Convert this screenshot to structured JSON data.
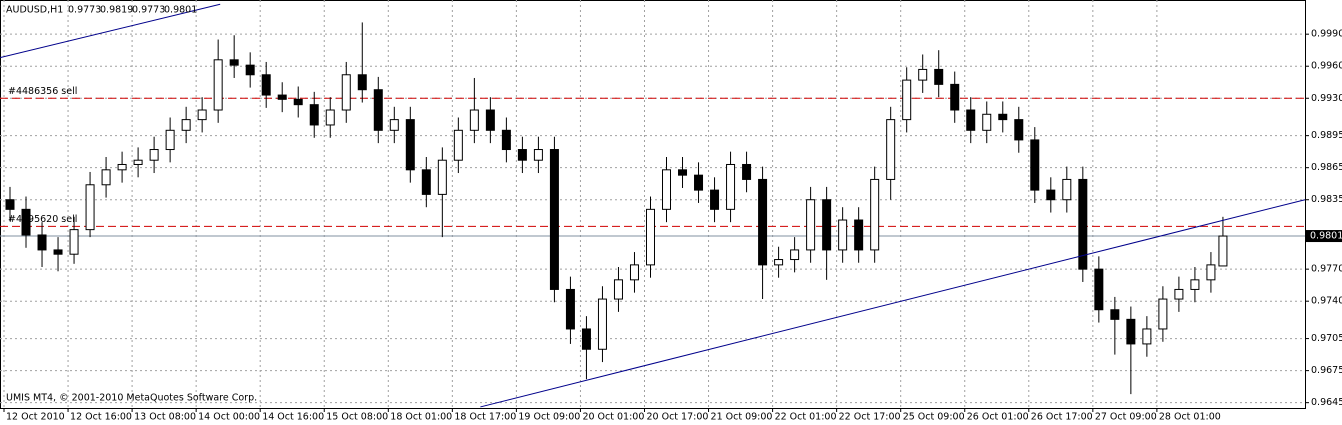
{
  "chart_data": {
    "type": "candlestick",
    "title": "AUDUSD,H1",
    "footer": "UMIS MT4, © 2001-2010 MetaQuotes Software Corp.",
    "x": [
      0,
      4,
      8,
      12,
      16,
      20,
      24,
      28,
      32,
      36,
      40,
      44,
      48,
      52,
      56,
      60,
      64,
      68,
      72,
      76,
      80,
      84,
      88,
      92,
      96,
      100,
      104,
      108,
      112,
      116,
      120,
      124,
      128,
      132,
      136,
      140,
      144,
      148,
      152,
      156,
      160,
      164,
      168,
      172,
      176,
      180,
      184,
      188,
      192,
      196,
      200,
      204,
      208,
      212,
      216,
      220,
      224,
      228,
      232,
      236,
      240,
      244,
      248,
      252,
      256,
      260,
      264,
      268,
      272,
      276,
      280,
      284,
      288,
      292,
      296,
      300,
      303
    ],
    "open": [
      0.9835,
      0.9826,
      0.9802,
      0.9788,
      0.9784,
      0.9807,
      0.9849,
      0.9863,
      0.9868,
      0.9872,
      0.9882,
      0.99,
      0.991,
      0.9919,
      0.9966,
      0.9961,
      0.9952,
      0.9933,
      0.9929,
      0.9924,
      0.9905,
      0.9919,
      0.9952,
      0.9938,
      0.99,
      0.991,
      0.9863,
      0.984,
      0.9872,
      0.99,
      0.9919,
      0.99,
      0.9882,
      0.9872,
      0.9882,
      0.9751,
      0.9714,
      0.9695,
      0.9742,
      0.976,
      0.9774,
      0.9826,
      0.9863,
      0.9858,
      0.9844,
      0.9826,
      0.9868,
      0.9854,
      0.9774,
      0.9779,
      0.9788,
      0.9835,
      0.9788,
      0.9816,
      0.9788,
      0.9854,
      0.991,
      0.9947,
      0.9957,
      0.9943,
      0.9919,
      0.99,
      0.9915,
      0.991,
      0.9891,
      0.9844,
      0.9835,
      0.9854,
      0.977,
      0.9732,
      0.9723,
      0.97,
      0.9714,
      0.9742,
      0.9751,
      0.976,
      0.9773
    ],
    "high": [
      0.9847,
      0.9838,
      0.9814,
      0.98,
      0.9819,
      0.9861,
      0.9875,
      0.988,
      0.9884,
      0.9894,
      0.9912,
      0.9922,
      0.9931,
      0.9985,
      0.9989,
      0.9973,
      0.9964,
      0.9945,
      0.9941,
      0.9936,
      0.9931,
      0.9964,
      1.0001,
      0.995,
      0.9922,
      0.9922,
      0.9875,
      0.9884,
      0.9912,
      0.9949,
      0.9931,
      0.9912,
      0.9894,
      0.9894,
      0.9894,
      0.9763,
      0.9726,
      0.9754,
      0.9772,
      0.9786,
      0.9838,
      0.9875,
      0.9875,
      0.987,
      0.9856,
      0.988,
      0.988,
      0.9866,
      0.9791,
      0.98,
      0.9847,
      0.9847,
      0.9828,
      0.9828,
      0.9866,
      0.9922,
      0.9959,
      0.9971,
      0.9975,
      0.9955,
      0.9931,
      0.9927,
      0.9927,
      0.9922,
      0.9903,
      0.9856,
      0.9866,
      0.9866,
      0.9782,
      0.9744,
      0.9735,
      0.9726,
      0.9754,
      0.9763,
      0.9772,
      0.9786,
      0.9819
    ],
    "low": [
      0.9815,
      0.979,
      0.9772,
      0.9768,
      0.9775,
      0.98,
      0.9837,
      0.9851,
      0.9856,
      0.986,
      0.987,
      0.9888,
      0.9898,
      0.9907,
      0.9949,
      0.994,
      0.9921,
      0.9917,
      0.9912,
      0.9893,
      0.9893,
      0.9907,
      0.9926,
      0.9888,
      0.9888,
      0.9851,
      0.9828,
      0.98,
      0.986,
      0.9888,
      0.9888,
      0.987,
      0.986,
      0.986,
      0.9739,
      0.97,
      0.9667,
      0.9683,
      0.973,
      0.9748,
      0.9762,
      0.9814,
      0.9846,
      0.9832,
      0.9814,
      0.9814,
      0.9842,
      0.9742,
      0.9762,
      0.9767,
      0.9776,
      0.976,
      0.9776,
      0.9776,
      0.9776,
      0.9835,
      0.9898,
      0.9935,
      0.9931,
      0.9907,
      0.9888,
      0.9888,
      0.9898,
      0.9879,
      0.9832,
      0.9823,
      0.9823,
      0.9758,
      0.972,
      0.969,
      0.9653,
      0.9688,
      0.9702,
      0.973,
      0.9739,
      0.9748,
      0.9773
    ],
    "close": [
      0.9826,
      0.9802,
      0.9788,
      0.9784,
      0.9807,
      0.9849,
      0.9863,
      0.9868,
      0.9872,
      0.9882,
      0.99,
      0.991,
      0.9919,
      0.9966,
      0.9961,
      0.9952,
      0.9933,
      0.9929,
      0.9924,
      0.9905,
      0.9919,
      0.9952,
      0.9938,
      0.99,
      0.991,
      0.9863,
      0.984,
      0.9872,
      0.99,
      0.9919,
      0.99,
      0.9882,
      0.9872,
      0.9882,
      0.9751,
      0.9714,
      0.9695,
      0.9742,
      0.976,
      0.9774,
      0.9826,
      0.9863,
      0.9858,
      0.9844,
      0.9826,
      0.9868,
      0.9854,
      0.9774,
      0.9779,
      0.9788,
      0.9835,
      0.9788,
      0.9816,
      0.9788,
      0.9854,
      0.991,
      0.9947,
      0.9957,
      0.9943,
      0.9919,
      0.99,
      0.9915,
      0.991,
      0.9891,
      0.9844,
      0.9835,
      0.9854,
      0.977,
      0.9732,
      0.9723,
      0.97,
      0.9714,
      0.9742,
      0.9751,
      0.976,
      0.9774,
      0.9801
    ],
    "xlim": [
      -1,
      325
    ],
    "xticks": [
      {
        "value": 0,
        "label": "12 Oct 2010"
      },
      {
        "value": 16,
        "label": "12 Oct 16:00"
      },
      {
        "value": 32,
        "label": "13 Oct 08:00"
      },
      {
        "value": 48,
        "label": "14 Oct 00:00"
      },
      {
        "value": 64,
        "label": "14 Oct 16:00"
      },
      {
        "value": 80,
        "label": "15 Oct 08:00"
      },
      {
        "value": 96,
        "label": "18 Oct 01:00"
      },
      {
        "value": 112,
        "label": "18 Oct 17:00"
      },
      {
        "value": 128,
        "label": "19 Oct 09:00"
      },
      {
        "value": 144,
        "label": "20 Oct 01:00"
      },
      {
        "value": 160,
        "label": "20 Oct 17:00"
      },
      {
        "value": 176,
        "label": "21 Oct 09:00"
      },
      {
        "value": 192,
        "label": "22 Oct 01:00"
      },
      {
        "value": 208,
        "label": "22 Oct 17:00"
      },
      {
        "value": 224,
        "label": "25 Oct 09:00"
      },
      {
        "value": 240,
        "label": "26 Oct 01:00"
      },
      {
        "value": 256,
        "label": "26 Oct 17:00"
      },
      {
        "value": 272,
        "label": "27 Oct 09:00"
      },
      {
        "value": 288,
        "label": "28 Oct 01:00"
      }
    ],
    "ylim": [
      0.964,
      1.0022
    ],
    "yticks": [
      {
        "value": 0.999,
        "label": "0.9990"
      },
      {
        "value": 0.996,
        "label": "0.9960"
      },
      {
        "value": 0.993,
        "label": "0.9930"
      },
      0.9895,
      0.9865,
      0.9835,
      {
        "value": 0.977,
        "label": "0.9770"
      },
      {
        "value": 0.974,
        "label": "0.9740"
      },
      0.9705,
      0.9675,
      0.9645
    ],
    "grid": true,
    "bid": 0.9801,
    "orders": [
      {
        "label": "#4486356 sell",
        "price": 0.993
      },
      {
        "label": "#4595620 sell",
        "price": 0.981
      }
    ],
    "trendlines": [
      {
        "x": [
          -1,
          54
        ],
        "y": [
          0.9968,
          1.0018
        ]
      },
      {
        "x": [
          119,
          325
        ],
        "y": [
          0.9641,
          0.9835
        ]
      }
    ],
    "colors": {
      "up": "#ffffff",
      "down": "#000000",
      "trendline": "#00008b",
      "order": "#d00000",
      "bid": "#8090a0"
    }
  }
}
